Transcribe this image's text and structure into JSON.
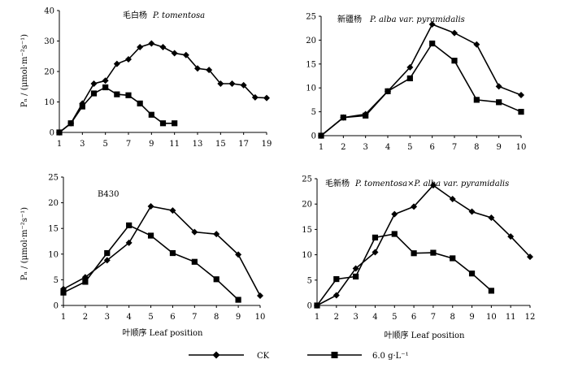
{
  "figure": {
    "ylabel": "Pₙ / (μmol·m⁻²s⁻¹)",
    "xlabel": "叶顺序 Leaf position",
    "legend": [
      {
        "name": "CK",
        "marker": "diamond"
      },
      {
        "name": "6.0 g·L⁻¹",
        "marker": "square"
      }
    ],
    "line_color": "#000000"
  },
  "chart_data": [
    {
      "type": "line",
      "title": "毛白杨 P. tomentosa",
      "title_cn": "毛白杨",
      "title_latin": "P. tomentosa",
      "xlabel": "",
      "ylabel": "Pₙ / (μmol·m⁻²s⁻¹)",
      "ylim": [
        0,
        40
      ],
      "yticks": [
        0,
        10,
        20,
        30,
        40
      ],
      "xlim": [
        1,
        19
      ],
      "xticks": [
        1,
        3,
        5,
        7,
        9,
        11,
        13,
        15,
        17,
        19
      ],
      "series": [
        {
          "name": "CK",
          "marker": "diamond",
          "x": [
            1,
            2,
            3,
            4,
            5,
            6,
            7,
            8,
            9,
            10,
            11,
            12,
            13,
            14,
            15,
            16,
            17,
            18,
            19
          ],
          "values": [
            0,
            3,
            9.5,
            16,
            17,
            22.5,
            24,
            28,
            29.2,
            28,
            26,
            25.4,
            21,
            20.5,
            16,
            16,
            15.5,
            11.5,
            11.3
          ]
        },
        {
          "name": "6.0 g·L⁻¹",
          "marker": "square",
          "x": [
            1,
            2,
            3,
            4,
            5,
            6,
            7,
            8,
            9,
            10,
            11
          ],
          "values": [
            0,
            3,
            8.5,
            12.8,
            14.8,
            12.5,
            12.2,
            9.5,
            5.8,
            3,
            3
          ]
        }
      ]
    },
    {
      "type": "line",
      "title": "新疆杨 P. alba var. pyramidalis",
      "title_cn": "新疆杨",
      "title_latin": "P. alba var. pyramidalis",
      "xlabel": "",
      "ylabel": "",
      "ylim": [
        0,
        25
      ],
      "yticks": [
        0,
        5,
        10,
        15,
        20,
        25
      ],
      "xlim": [
        1,
        10
      ],
      "xticks": [
        1,
        2,
        3,
        4,
        5,
        6,
        7,
        8,
        9,
        10
      ],
      "series": [
        {
          "name": "CK",
          "marker": "diamond",
          "x": [
            1,
            2,
            3,
            4,
            5,
            6,
            7,
            8,
            9,
            10
          ],
          "values": [
            0,
            3.8,
            4.5,
            9.3,
            14.3,
            23.3,
            21.5,
            19.1,
            10.3,
            8.5
          ]
        },
        {
          "name": "6.0 g·L⁻¹",
          "marker": "square",
          "x": [
            1,
            2,
            3,
            4,
            5,
            6,
            7,
            8,
            9,
            10
          ],
          "values": [
            0,
            3.8,
            4.2,
            9.3,
            12,
            19.3,
            15.7,
            7.5,
            7,
            5
          ]
        }
      ]
    },
    {
      "type": "line",
      "title": "B430",
      "title_cn": "",
      "title_latin": "B430",
      "xlabel": "叶顺序 Leaf position",
      "ylabel": "Pₙ / (μmol·m⁻²s⁻¹)",
      "ylim": [
        0,
        25
      ],
      "yticks": [
        0,
        5,
        10,
        15,
        20,
        25
      ],
      "xlim": [
        1,
        10
      ],
      "xticks": [
        1,
        2,
        3,
        4,
        5,
        6,
        7,
        8,
        9,
        10
      ],
      "series": [
        {
          "name": "CK",
          "marker": "diamond",
          "x": [
            1,
            2,
            3,
            4,
            5,
            6,
            7,
            8,
            9,
            10
          ],
          "values": [
            3.2,
            5.5,
            8.8,
            12.2,
            19.3,
            18.5,
            14.3,
            13.9,
            9.9,
            1.9
          ]
        },
        {
          "name": "6.0 g·L⁻¹",
          "marker": "square",
          "x": [
            1,
            2,
            3,
            4,
            5,
            6,
            7,
            8,
            9
          ],
          "values": [
            2.5,
            4.6,
            10.2,
            15.6,
            13.6,
            10.2,
            8.5,
            5.1,
            1.1
          ]
        }
      ]
    },
    {
      "type": "line",
      "title": "毛新杨 P. tomentosa×P. alba var. pyramidalis",
      "title_cn": "毛新杨",
      "title_latin": "P. tomentosa×P. alba var. pyramidalis",
      "xlabel": "叶顺序 Leaf position",
      "ylabel": "",
      "ylim": [
        0,
        25
      ],
      "yticks": [
        0,
        5,
        10,
        15,
        20,
        25
      ],
      "xlim": [
        1,
        12
      ],
      "xticks": [
        1,
        2,
        3,
        4,
        5,
        6,
        7,
        8,
        9,
        10,
        11,
        12
      ],
      "series": [
        {
          "name": "CK",
          "marker": "diamond",
          "x": [
            1,
            2,
            3,
            4,
            5,
            6,
            7,
            8,
            9,
            10,
            11,
            12
          ],
          "values": [
            0,
            2,
            7.3,
            10.5,
            18,
            19.5,
            23.7,
            21,
            18.5,
            17.3,
            13.6,
            9.6
          ]
        },
        {
          "name": "6.0 g·L⁻¹",
          "marker": "square",
          "x": [
            1,
            2,
            3,
            4,
            5,
            6,
            7,
            8,
            9,
            10
          ],
          "values": [
            0,
            5.2,
            5.7,
            13.4,
            14.1,
            10.3,
            10.4,
            9.3,
            6.3,
            2.9
          ]
        }
      ]
    }
  ]
}
